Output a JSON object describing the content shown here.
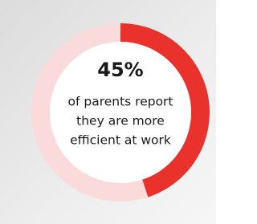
{
  "chart_data": {
    "type": "donut",
    "values": [
      45,
      55
    ],
    "value_labels": [
      "45%",
      null
    ],
    "colors": [
      "#e8322b",
      "#fadada"
    ],
    "caption_lines": [
      "of parents report",
      "they are more",
      "efficient at work"
    ]
  }
}
